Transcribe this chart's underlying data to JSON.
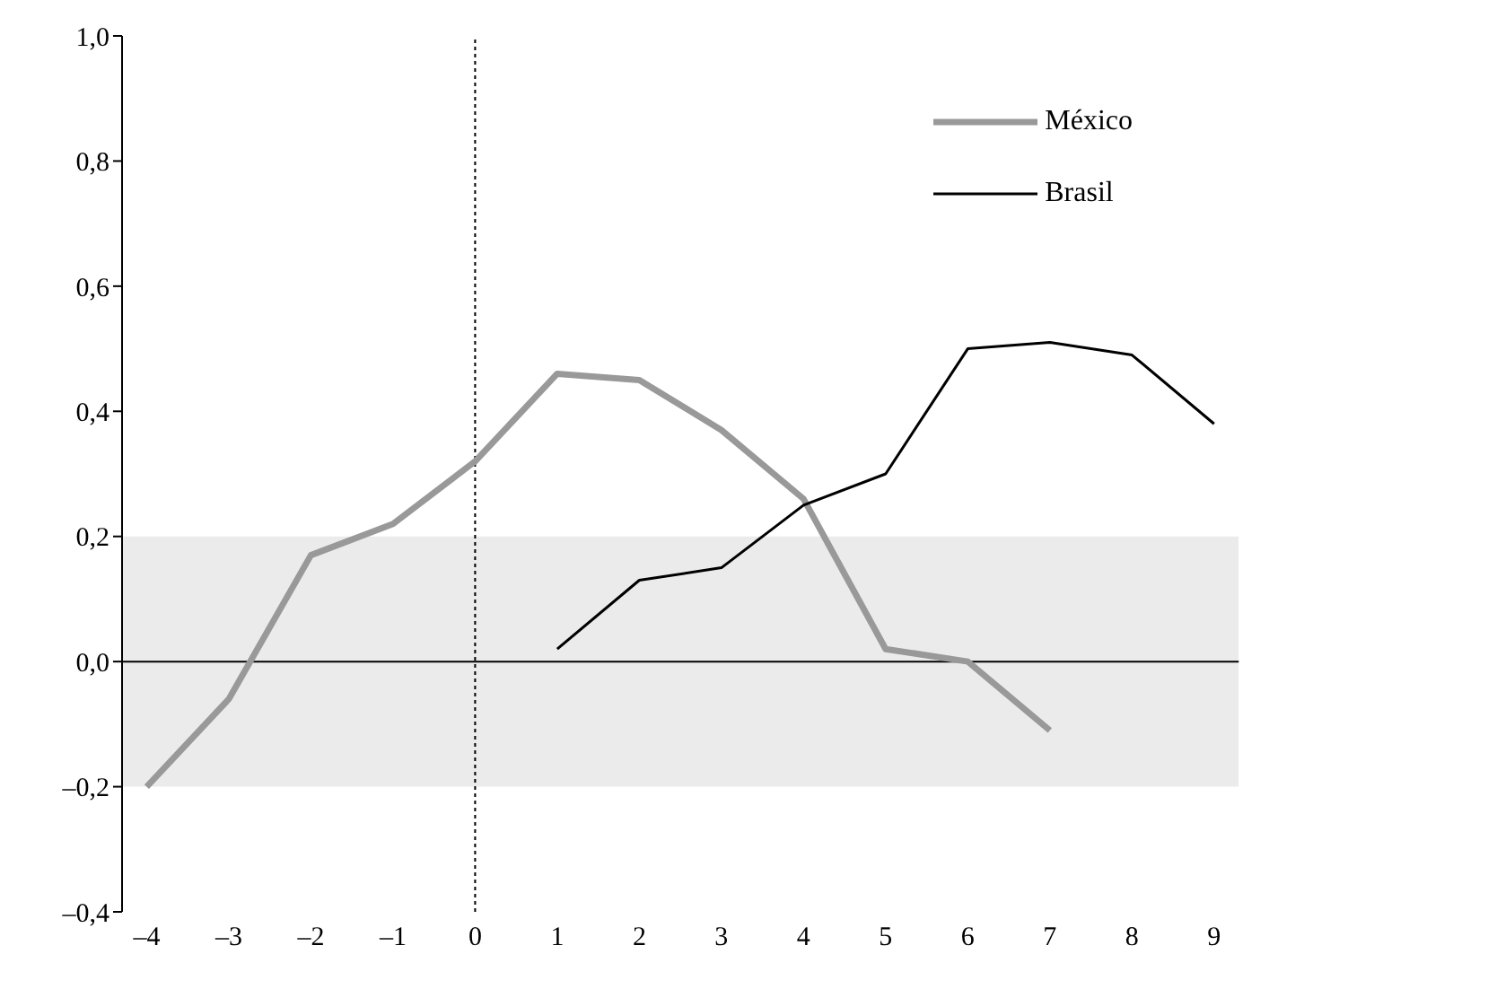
{
  "chart_data": {
    "type": "line",
    "x": [
      -4,
      -3,
      -2,
      -1,
      0,
      1,
      2,
      3,
      4,
      5,
      6,
      7,
      8,
      9
    ],
    "series": [
      {
        "name": "México",
        "color": "#999999",
        "values": [
          -0.2,
          -0.06,
          0.17,
          0.22,
          0.32,
          0.46,
          0.45,
          0.37,
          0.26,
          0.02,
          0.0,
          -0.11,
          null,
          null
        ]
      },
      {
        "name": "Brasil",
        "color": "#000000",
        "values": [
          null,
          null,
          null,
          null,
          null,
          0.02,
          0.13,
          0.15,
          0.25,
          0.3,
          0.5,
          0.51,
          0.49,
          0.38
        ]
      }
    ],
    "xlim": [
      -4.3,
      9.3
    ],
    "xticks": [
      {
        "value": -4,
        "label": "–4"
      },
      {
        "value": -3,
        "label": "–3"
      },
      {
        "value": -2,
        "label": "–2"
      },
      {
        "value": -1,
        "label": "–1"
      },
      0,
      1,
      2,
      3,
      4,
      5,
      6,
      7,
      8,
      9
    ],
    "ylim": [
      -0.4,
      1.0
    ],
    "yticks": [
      {
        "value": -0.4,
        "label": "–0,4"
      },
      {
        "value": -0.2,
        "label": "–0,2"
      },
      {
        "value": 0,
        "label": "0,0"
      },
      {
        "value": 0.2,
        "label": "0,2"
      },
      {
        "value": 0.4,
        "label": "0,4"
      },
      {
        "value": 0.6,
        "label": "0,6"
      },
      {
        "value": 0.8,
        "label": "0,8"
      },
      {
        "value": 1.0,
        "label": "1,0"
      }
    ],
    "ref_lines": [
      {
        "axis": "x",
        "value": 0,
        "color": "#000000",
        "line_style": "dotted"
      }
    ],
    "bands": [
      {
        "axis": "y",
        "from": -0.2,
        "to": 0.2,
        "color": "#ebebeb"
      }
    ],
    "legend": "top right",
    "marker": "none",
    "line_style": "solid"
  }
}
